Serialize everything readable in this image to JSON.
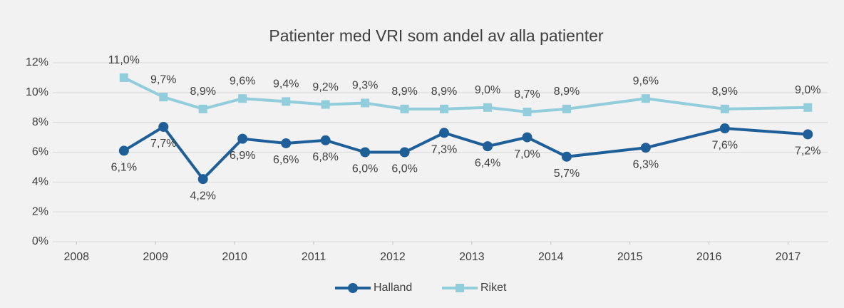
{
  "chart_data": {
    "type": "line",
    "title": "Patienter med VRI som andel av alla patienter",
    "x": [
      2008.6,
      2009.1,
      2009.6,
      2010.1,
      2010.65,
      2011.15,
      2011.65,
      2012.15,
      2012.65,
      2013.2,
      2013.7,
      2014.2,
      2015.2,
      2016.2,
      2017.25
    ],
    "series": [
      {
        "name": "Halland",
        "color": "#1f5f99",
        "values": [
          6.1,
          7.7,
          4.2,
          6.9,
          6.6,
          6.8,
          6.0,
          6.0,
          7.3,
          6.4,
          7.0,
          5.7,
          6.3,
          7.6,
          7.2
        ],
        "value_labels": [
          "6,1%",
          "7,7%",
          "4,2%",
          "6,9%",
          "6,6%",
          "6,8%",
          "6,0%",
          "6,0%",
          "7,3%",
          "6,4%",
          "7,0%",
          "5,7%",
          "6,3%",
          "7,6%",
          "7,2%"
        ]
      },
      {
        "name": "Riket",
        "color": "#92cddc",
        "values": [
          11.0,
          9.7,
          8.9,
          9.6,
          9.4,
          9.2,
          9.3,
          8.9,
          8.9,
          9.0,
          8.7,
          8.9,
          9.6,
          8.9,
          9.0
        ],
        "value_labels": [
          "11,0%",
          "9,7%",
          "8,9%",
          "9,6%",
          "9,4%",
          "9,2%",
          "9,3%",
          "8,9%",
          "8,9%",
          "9,0%",
          "8,7%",
          "8,9%",
          "9,6%",
          "8,9%",
          "9,0%"
        ]
      }
    ],
    "xlim": [
      2007.7,
      2017.5
    ],
    "xticks": [
      2008,
      2009,
      2010,
      2011,
      2012,
      2013,
      2014,
      2015,
      2016,
      2017
    ],
    "ylim": [
      0,
      12
    ],
    "yticks": [
      {
        "value": 0,
        "label": "0%"
      },
      {
        "value": 2,
        "label": "2%"
      },
      {
        "value": 4,
        "label": "4%"
      },
      {
        "value": 6,
        "label": "6%"
      },
      {
        "value": 8,
        "label": "8%"
      },
      {
        "value": 10,
        "label": "10%"
      },
      {
        "value": 12,
        "label": "12%"
      }
    ],
    "grid": true,
    "legend": "bottom"
  }
}
